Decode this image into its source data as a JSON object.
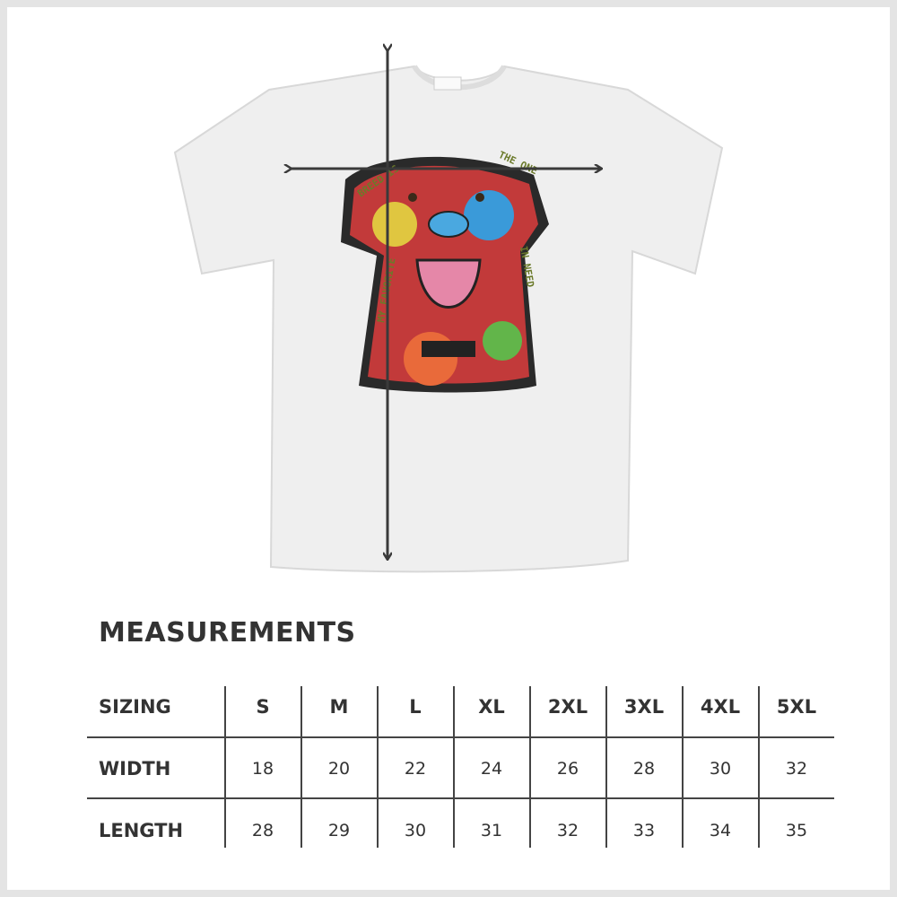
{
  "title": "MEASUREMENTS",
  "shirt_print_text": [
    "MY FAVORITE",
    "BREED IS",
    "THE ONE",
    "IN NEED"
  ],
  "table": {
    "headers": [
      "SIZING",
      "S",
      "M",
      "L",
      "XL",
      "2XL",
      "3XL",
      "4XL",
      "5XL"
    ],
    "rows": [
      {
        "label": "WIDTH",
        "values": [
          "18",
          "20",
          "22",
          "24",
          "26",
          "28",
          "30",
          "32"
        ]
      },
      {
        "label": "LENGTH",
        "values": [
          "28",
          "29",
          "30",
          "31",
          "32",
          "33",
          "34",
          "35"
        ]
      }
    ]
  },
  "colors": {
    "text": "#333333",
    "shirt": "#efefef",
    "arrow": "#3a3a3a",
    "border": "#e4e4e4"
  }
}
